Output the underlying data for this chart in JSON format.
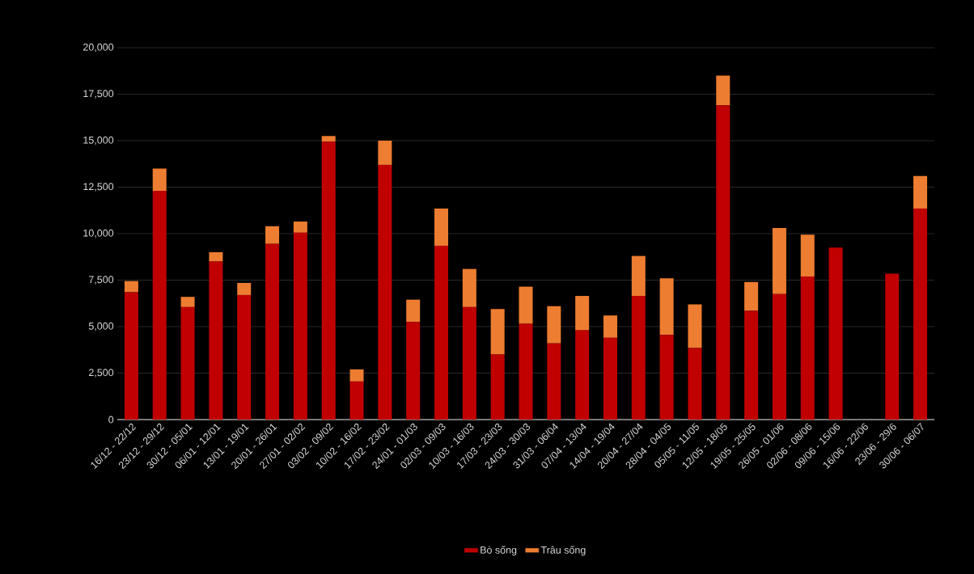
{
  "chart_data": {
    "type": "bar",
    "stacked": true,
    "categories": [
      "16/12 - 22/12",
      "23/12 - 29/12",
      "30/12 - 05/01",
      "06/01 - 12/01",
      "13/01 - 19/01",
      "20/01 - 26/01",
      "27/01 - 02/02",
      "03/02 - 09/02",
      "10/02 - 16/02",
      "17/02 - 23/02",
      "24/01 - 01/03",
      "02/03 - 09/03",
      "10/03 - 16/03",
      "17/03 - 23/03",
      "24/03 - 30/03",
      "31/03 - 06/04",
      "07/04 - 13/04",
      "14/04 - 19/04",
      "20/04 - 27/04",
      "28/04 - 04/05",
      "05/05 - 11/05",
      "12/05 - 18/05",
      "19/05 - 25/05",
      "26/05 - 01/06",
      "02/06 - 08/06",
      "09/06 - 15/06",
      "16/06 - 22/06",
      "23/06 - 29/6",
      "30/06 - 06/07"
    ],
    "series": [
      {
        "name": "Bò sống",
        "color": "#c00000",
        "values": [
          6850,
          12300,
          6050,
          8500,
          6700,
          9450,
          10050,
          14950,
          2050,
          13700,
          5250,
          9350,
          6050,
          3500,
          5150,
          4100,
          4800,
          4400,
          6650,
          4550,
          3850,
          16900,
          5850,
          6750,
          7700,
          9250,
          null,
          7850,
          11350
        ]
      },
      {
        "name": "Trâu sống",
        "color": "#ed7d31",
        "values": [
          600,
          1200,
          550,
          500,
          650,
          950,
          600,
          300,
          650,
          1300,
          1200,
          2000,
          2050,
          2450,
          2000,
          2000,
          1850,
          1200,
          2150,
          3050,
          2350,
          1600,
          1550,
          3550,
          2250,
          null,
          null,
          null,
          1750
        ]
      }
    ],
    "ylim": [
      0,
      20000
    ],
    "yticks": [
      0,
      {
        "value": 2500,
        "label": "2,500"
      },
      {
        "value": 5000,
        "label": "5,000"
      },
      {
        "value": 7500,
        "label": "7,500"
      },
      {
        "value": 10000,
        "label": "10,000"
      },
      {
        "value": 12500,
        "label": "12,500"
      },
      {
        "value": 15000,
        "label": "15,000"
      },
      {
        "value": 17500,
        "label": "17,500"
      },
      {
        "value": 20000,
        "label": "20,000"
      }
    ],
    "grid": "y",
    "legend": "bottom"
  }
}
